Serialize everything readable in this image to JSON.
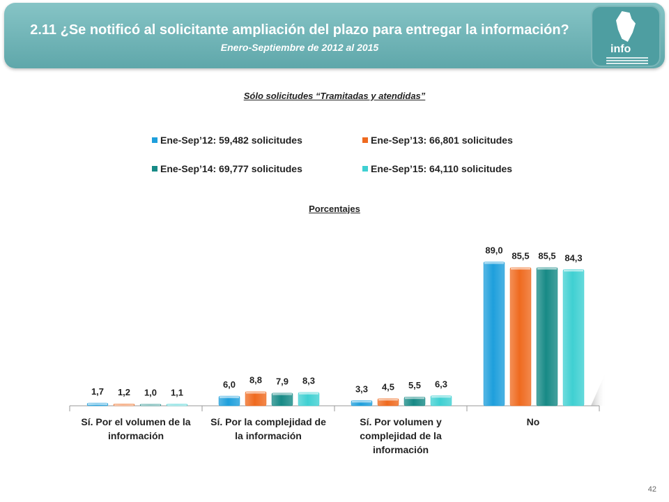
{
  "header": {
    "title": "2.11 ¿Se notificó al solicitante ampliación del plazo para entregar la información?",
    "subtitle": "Enero-Septiembre de 2012 al 2015",
    "logo_text": "info"
  },
  "filter_note": "Sólo solicitudes “Tramitadas y atendidas”",
  "units_label": "Porcentajes",
  "page_number": "42",
  "colors": {
    "header": "#6fb3b5",
    "series": [
      "#1e9fdc",
      "#ef6a1f",
      "#178a86",
      "#3fd0d2"
    ]
  },
  "chart_data": {
    "type": "bar",
    "ylabel": "Porcentajes",
    "ylim": [
      0,
      100
    ],
    "grid": false,
    "legend_position": "top",
    "categories": [
      [
        "Sí. Por el volumen de la",
        "información"
      ],
      [
        "Sí. Por la complejidad de",
        "la información"
      ],
      [
        "Sí. Por volumen y",
        "complejidad de la",
        "información"
      ],
      [
        "No"
      ]
    ],
    "series": [
      {
        "name": "Ene-Sep’12: 59,482 solicitudes",
        "values": [
          1.7,
          6.0,
          3.3,
          89.0
        ],
        "labels": [
          "1,7",
          "6,0",
          "3,3",
          "89,0"
        ]
      },
      {
        "name": "Ene-Sep’13: 66,801 solicitudes",
        "values": [
          1.2,
          8.8,
          4.5,
          85.5
        ],
        "labels": [
          "1,2",
          "8,8",
          "4,5",
          "85,5"
        ]
      },
      {
        "name": "Ene-Sep’14: 69,777 solicitudes",
        "values": [
          1.0,
          7.9,
          5.5,
          85.5
        ],
        "labels": [
          "1,0",
          "7,9",
          "5,5",
          "85,5"
        ]
      },
      {
        "name": "Ene-Sep’15: 64,110 solicitudes",
        "values": [
          1.1,
          8.3,
          6.3,
          84.3
        ],
        "labels": [
          "1,1",
          "8,3",
          "6,3",
          "84,3"
        ]
      }
    ]
  }
}
